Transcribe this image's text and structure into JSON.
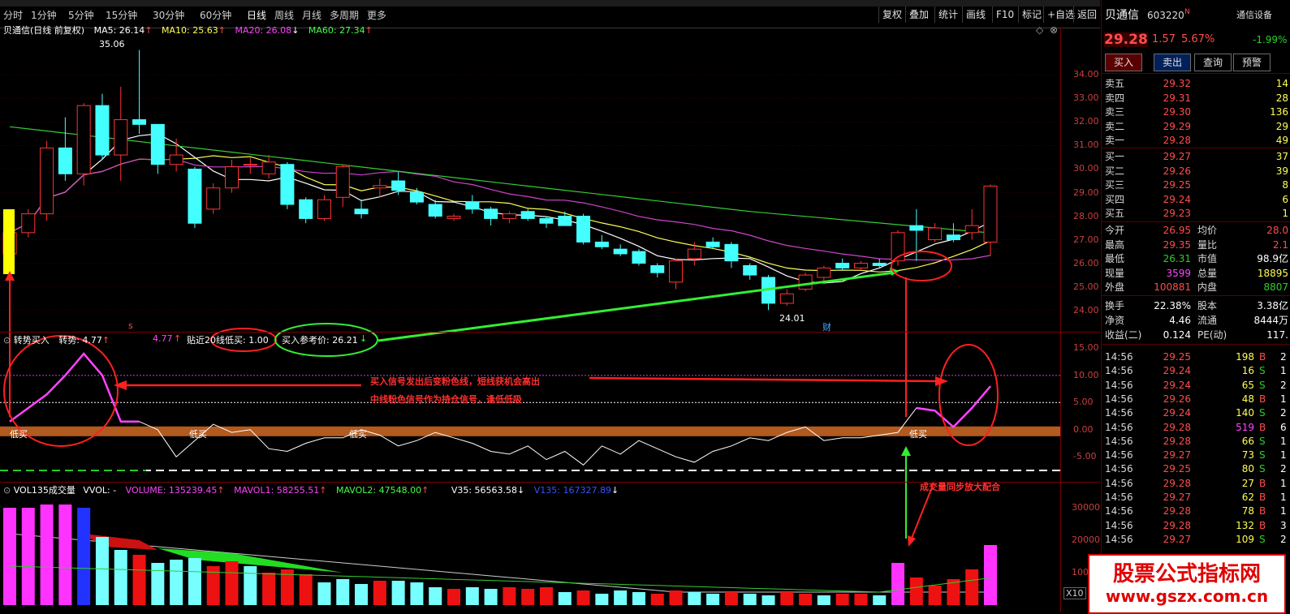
{
  "toolbar": {
    "timeframes": [
      "分时",
      "1分钟",
      "5分钟",
      "15分钟",
      "30分钟",
      "60分钟",
      "日线",
      "周线",
      "月线",
      "多周期",
      "更多"
    ],
    "right_buttons": [
      "复权",
      "叠加",
      "统计",
      "画线",
      "F10",
      "标记",
      "+自选",
      "返回"
    ]
  },
  "main_chart": {
    "header": "贝通信(日线 前复权)",
    "ma5": "MA5: 26.14",
    "ma10": "MA10: 25.63",
    "ma20": "MA20: 26.08",
    "ma60": "MA60: 27.34",
    "high_label": "35.06",
    "low_label": "24.01",
    "y_ticks": [
      "34.00",
      "33.00",
      "32.00",
      "31.00",
      "30.00",
      "29.00",
      "28.00",
      "27.00",
      "26.00",
      "25.00",
      "24.00"
    ],
    "marker_cai": "财",
    "marker_s": "s"
  },
  "indicator": {
    "name": "转势买入",
    "label1": "转势: 4.77",
    "label2": "4.77",
    "label3": "贴近20线低买: 1.00",
    "label4": "买入参考价: 26.21",
    "low_buy": "低买",
    "annotation1": "买入信号发出后变粉色线，短线获机会高出",
    "annotation2": "中线粉色信号作为持仓信号，逢低低吸",
    "y_ticks": [
      "15.00",
      "10.00",
      "5.00",
      "0.00",
      "-5.00"
    ]
  },
  "volume": {
    "name": "VOL135成交量",
    "vvol": "VVOL: -",
    "volume": "VOLUME: 135239.45",
    "mavol1": "MAVOL1: 58255.51",
    "mavol2": "MAVOL2: 47548.00",
    "v35": "V35: 56563.58",
    "v135": "V135: 167327.89",
    "annotation": "成交量同步放大配合",
    "y_ticks": [
      "30000",
      "20000",
      "10000"
    ],
    "x10": "X10"
  },
  "quote": {
    "name": "贝通信",
    "code": "603220",
    "suffix": "N",
    "settings": "通信设备",
    "price": "29.28",
    "change": "1.57",
    "pct": "5.67%",
    "pct2": "-1.99%",
    "buttons": [
      "买入",
      "卖出",
      "查询",
      "预警"
    ],
    "asks": [
      {
        "label": "卖五",
        "price": "29.32",
        "vol": "14"
      },
      {
        "label": "卖四",
        "price": "29.31",
        "vol": "28"
      },
      {
        "label": "卖三",
        "price": "29.30",
        "vol": "136"
      },
      {
        "label": "卖二",
        "price": "29.29",
        "vol": "29"
      },
      {
        "label": "卖一",
        "price": "29.28",
        "vol": "49"
      }
    ],
    "bids": [
      {
        "label": "买一",
        "price": "29.27",
        "vol": "37"
      },
      {
        "label": "买二",
        "price": "29.26",
        "vol": "39"
      },
      {
        "label": "买三",
        "price": "29.25",
        "vol": "8"
      },
      {
        "label": "买四",
        "price": "29.24",
        "vol": "6"
      },
      {
        "label": "买五",
        "price": "29.23",
        "vol": "1"
      }
    ],
    "stats": [
      {
        "l1": "今开",
        "v1": "26.95",
        "l2": "均价",
        "v2": "28.0"
      },
      {
        "l1": "最高",
        "v1": "29.35",
        "l2": "量比",
        "v2": "2.1"
      },
      {
        "l1": "最低",
        "v1": "26.31",
        "l2": "市值",
        "v2": "98.9亿"
      },
      {
        "l1": "现量",
        "v1": "3599",
        "l2": "总量",
        "v2": "18895"
      },
      {
        "l1": "外盘",
        "v1": "100881",
        "l2": "内盘",
        "v2": "8807"
      }
    ],
    "stats2": [
      {
        "l1": "换手",
        "v1": "22.38%",
        "l2": "股本",
        "v2": "3.38亿"
      },
      {
        "l1": "净资",
        "v1": "4.46",
        "l2": "流通",
        "v2": "8444万"
      },
      {
        "l1": "收益(二)",
        "v1": "0.124",
        "l2": "PE(动)",
        "v2": "117."
      }
    ],
    "ticks": [
      {
        "t": "14:56",
        "p": "29.25",
        "v": "198",
        "d": "B",
        "n": "2"
      },
      {
        "t": "14:56",
        "p": "29.24",
        "v": "16",
        "d": "S",
        "n": "1"
      },
      {
        "t": "14:56",
        "p": "29.24",
        "v": "65",
        "d": "S",
        "n": "2"
      },
      {
        "t": "14:56",
        "p": "29.26",
        "v": "48",
        "d": "B",
        "n": "1"
      },
      {
        "t": "14:56",
        "p": "29.24",
        "v": "140",
        "d": "S",
        "n": "2"
      },
      {
        "t": "14:56",
        "p": "29.28",
        "v": "519",
        "d": "B",
        "n": "6"
      },
      {
        "t": "14:56",
        "p": "29.28",
        "v": "66",
        "d": "S",
        "n": "1"
      },
      {
        "t": "14:56",
        "p": "29.27",
        "v": "73",
        "d": "S",
        "n": "1"
      },
      {
        "t": "14:56",
        "p": "29.25",
        "v": "80",
        "d": "S",
        "n": "2"
      },
      {
        "t": "14:56",
        "p": "29.28",
        "v": "27",
        "d": "B",
        "n": "1"
      },
      {
        "t": "14:56",
        "p": "29.27",
        "v": "62",
        "d": "B",
        "n": "1"
      },
      {
        "t": "14:56",
        "p": "29.28",
        "v": "78",
        "d": "B",
        "n": "1"
      },
      {
        "t": "14:56",
        "p": "29.28",
        "v": "132",
        "d": "B",
        "n": "3"
      },
      {
        "t": "14:56",
        "p": "29.27",
        "v": "109",
        "d": "S",
        "n": "2"
      }
    ]
  },
  "watermark": {
    "line1": "股票公式指标网",
    "line2": "www.gszx.com.cn"
  },
  "chart_data": {
    "type": "candlestick",
    "candles": [
      [
        26.4,
        27.5,
        26.2,
        27.3
      ],
      [
        27.3,
        28.3,
        27.1,
        28.1
      ],
      [
        28.1,
        31.2,
        27.8,
        30.9
      ],
      [
        30.9,
        32.2,
        29.5,
        29.8
      ],
      [
        29.8,
        32.8,
        29.3,
        32.7
      ],
      [
        32.7,
        33.2,
        30.4,
        30.6
      ],
      [
        30.6,
        33.5,
        29.5,
        32.1
      ],
      [
        32.1,
        35.06,
        31.5,
        31.9
      ],
      [
        31.9,
        31.9,
        29.8,
        30.2
      ],
      [
        30.2,
        31.3,
        29.9,
        30.6
      ],
      [
        30.0,
        30.1,
        27.5,
        27.7
      ],
      [
        28.3,
        29.4,
        28.1,
        29.2
      ],
      [
        29.2,
        30.4,
        29.0,
        30.1
      ],
      [
        30.2,
        30.5,
        29.8,
        30.2
      ],
      [
        29.8,
        30.6,
        29.6,
        30.3
      ],
      [
        30.2,
        30.3,
        28.3,
        28.5
      ],
      [
        28.7,
        28.8,
        27.7,
        27.9
      ],
      [
        27.9,
        28.9,
        27.8,
        28.7
      ],
      [
        28.8,
        30.2,
        28.4,
        30.1
      ],
      [
        28.3,
        28.7,
        27.9,
        28.1
      ],
      [
        29.2,
        29.6,
        28.8,
        29.3
      ],
      [
        29.5,
        29.9,
        28.9,
        29.1
      ],
      [
        29.0,
        29.2,
        28.5,
        28.6
      ],
      [
        28.5,
        28.7,
        27.9,
        28.0
      ],
      [
        27.9,
        28.1,
        27.8,
        28.0
      ],
      [
        28.6,
        28.9,
        28.1,
        28.3
      ],
      [
        28.3,
        28.4,
        27.6,
        27.9
      ],
      [
        27.9,
        28.2,
        27.7,
        28.1
      ],
      [
        28.2,
        28.3,
        27.8,
        27.9
      ],
      [
        27.9,
        28.0,
        27.5,
        27.7
      ],
      [
        28.0,
        28.2,
        27.6,
        27.6
      ],
      [
        28.0,
        28.1,
        26.8,
        26.9
      ],
      [
        26.9,
        27.2,
        26.6,
        26.7
      ],
      [
        26.6,
        26.8,
        26.3,
        26.4
      ],
      [
        26.5,
        26.6,
        25.9,
        26.0
      ],
      [
        25.9,
        26.0,
        25.4,
        25.6
      ],
      [
        25.2,
        26.2,
        24.9,
        26.1
      ],
      [
        26.2,
        26.9,
        25.9,
        26.6
      ],
      [
        26.9,
        27.1,
        26.6,
        26.7
      ],
      [
        26.8,
        26.9,
        25.8,
        26.1
      ],
      [
        25.9,
        26.0,
        25.3,
        25.5
      ],
      [
        25.4,
        25.5,
        24.01,
        24.3
      ],
      [
        24.3,
        24.9,
        24.2,
        24.7
      ],
      [
        24.9,
        25.6,
        24.8,
        25.5
      ],
      [
        25.4,
        25.9,
        25.2,
        25.8
      ],
      [
        26.0,
        26.2,
        25.7,
        25.8
      ],
      [
        25.8,
        26.1,
        25.7,
        26.0
      ],
      [
        26.0,
        26.2,
        25.8,
        25.9
      ],
      [
        26.1,
        27.4,
        25.9,
        27.3
      ],
      [
        27.6,
        28.3,
        26.1,
        27.4
      ],
      [
        27.0,
        27.7,
        26.9,
        27.5
      ],
      [
        27.2,
        27.7,
        26.9,
        27.0
      ],
      [
        27.3,
        28.3,
        27.0,
        27.6
      ],
      [
        26.9,
        29.35,
        26.31,
        29.28
      ]
    ],
    "ylim": [
      23.4,
      35.6
    ],
    "volumes": [
      {
        "v": 30000,
        "c": "m"
      },
      {
        "v": 30000,
        "c": "m"
      },
      {
        "v": 31000,
        "c": "m"
      },
      {
        "v": 31000,
        "c": "m"
      },
      {
        "v": 30000,
        "c": "b"
      },
      {
        "v": 21000,
        "c": "c"
      },
      {
        "v": 17000,
        "c": "c"
      },
      {
        "v": 15500,
        "c": "r"
      },
      {
        "v": 13000,
        "c": "c"
      },
      {
        "v": 14000,
        "c": "c"
      },
      {
        "v": 14500,
        "c": "c"
      },
      {
        "v": 12000,
        "c": "r"
      },
      {
        "v": 13500,
        "c": "r"
      },
      {
        "v": 12000,
        "c": "c"
      },
      {
        "v": 10000,
        "c": "r"
      },
      {
        "v": 11000,
        "c": "r"
      },
      {
        "v": 9500,
        "c": "r"
      },
      {
        "v": 7000,
        "c": "c"
      },
      {
        "v": 8000,
        "c": "c"
      },
      {
        "v": 6500,
        "c": "c"
      },
      {
        "v": 7500,
        "c": "r"
      },
      {
        "v": 7500,
        "c": "c"
      },
      {
        "v": 7000,
        "c": "c"
      },
      {
        "v": 5500,
        "c": "c"
      },
      {
        "v": 5000,
        "c": "r"
      },
      {
        "v": 5500,
        "c": "c"
      },
      {
        "v": 5000,
        "c": "c"
      },
      {
        "v": 5500,
        "c": "r"
      },
      {
        "v": 5000,
        "c": "r"
      },
      {
        "v": 5500,
        "c": "r"
      },
      {
        "v": 4000,
        "c": "c"
      },
      {
        "v": 4500,
        "c": "r"
      },
      {
        "v": 3500,
        "c": "c"
      },
      {
        "v": 4500,
        "c": "c"
      },
      {
        "v": 4000,
        "c": "c"
      },
      {
        "v": 3500,
        "c": "r"
      },
      {
        "v": 4500,
        "c": "r"
      },
      {
        "v": 4000,
        "c": "c"
      },
      {
        "v": 3500,
        "c": "c"
      },
      {
        "v": 4000,
        "c": "r"
      },
      {
        "v": 3500,
        "c": "c"
      },
      {
        "v": 3000,
        "c": "c"
      },
      {
        "v": 4000,
        "c": "r"
      },
      {
        "v": 3500,
        "c": "r"
      },
      {
        "v": 3000,
        "c": "c"
      },
      {
        "v": 3500,
        "c": "r"
      },
      {
        "v": 3500,
        "c": "r"
      },
      {
        "v": 3000,
        "c": "c"
      },
      {
        "v": 13000,
        "c": "m"
      },
      {
        "v": 8500,
        "c": "r"
      },
      {
        "v": 6000,
        "c": "r"
      },
      {
        "v": 8000,
        "c": "r"
      },
      {
        "v": 11000,
        "c": "r"
      },
      {
        "v": 18500,
        "c": "m"
      }
    ],
    "vol_ylim": [
      0,
      35000
    ],
    "indicator_line": [
      1.5,
      4,
      6.5,
      10,
      14,
      10,
      1.5,
      1.5,
      0,
      -5,
      -2,
      1,
      -0.5,
      0,
      -3.5,
      -4,
      -2.5,
      -1.5,
      -1.5,
      0,
      -1,
      -3,
      -2,
      -0.5,
      -1.5,
      -2.5,
      -4,
      -4.5,
      -3,
      -5.5,
      -4,
      -6.5,
      -3,
      -4.5,
      -2,
      -3.5,
      -5,
      -6,
      -4,
      -3,
      -1.5,
      -2,
      -0.5,
      0.5,
      -2,
      -1.5,
      -1.5,
      -1,
      -0.5,
      4,
      3.5,
      0.5,
      4,
      8
    ],
    "ind_ylim": [
      -9,
      17
    ]
  }
}
